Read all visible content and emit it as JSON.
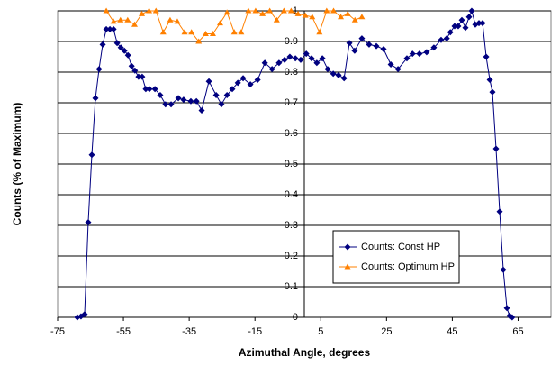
{
  "chart_data": {
    "type": "scatter",
    "x_label": "Azimuthal Angle, degrees",
    "y_label": "Counts (% of Maximum)",
    "xlim": [
      -75,
      75
    ],
    "xticks": [
      -75,
      -55,
      -35,
      -15,
      5,
      25,
      45,
      65
    ],
    "ylim": [
      0,
      1
    ],
    "yticks": [
      0,
      0.1,
      0.2,
      0.3,
      0.4,
      0.5,
      0.6,
      0.7,
      0.8,
      0.9,
      1
    ],
    "grid": true,
    "legend": "lower right",
    "series": [
      {
        "name": "Counts: Const HP",
        "color": "#000080",
        "marker": "diamond",
        "x": [
          -69.0,
          -67.9,
          -66.8,
          -65.7,
          -64.6,
          -63.5,
          -62.4,
          -61.3,
          -60.2,
          -59.1,
          -58.0,
          -56.9,
          -55.8,
          -54.7,
          -53.6,
          -52.5,
          -51.5,
          -50.4,
          -49.3,
          -48.2,
          -47.1,
          -45.4,
          -43.8,
          -42.2,
          -40.5,
          -38.3,
          -36.7,
          -34.5,
          -32.8,
          -31.2,
          -29.0,
          -26.8,
          -25.2,
          -23.5,
          -21.9,
          -20.2,
          -18.6,
          -16.4,
          -14.2,
          -12.0,
          -9.8,
          -7.7,
          -6.0,
          -4.4,
          -2.7,
          -1.1,
          0.6,
          2.2,
          3.8,
          5.5,
          7.1,
          8.8,
          10.4,
          12.1,
          13.7,
          15.3,
          17.5,
          19.7,
          21.9,
          24.1,
          26.3,
          28.5,
          31.2,
          32.9,
          35.0,
          37.2,
          39.4,
          41.6,
          43.3,
          44.4,
          45.7,
          46.8,
          47.9,
          49.0,
          50.1,
          50.9,
          52.0,
          53.1,
          54.2,
          55.3,
          56.4,
          57.2,
          58.3,
          59.4,
          60.5,
          61.6,
          62.4,
          63.2
        ],
        "values": [
          0,
          0.003,
          0.01,
          0.31,
          0.53,
          0.715,
          0.81,
          0.89,
          0.94,
          0.94,
          0.94,
          0.895,
          0.88,
          0.87,
          0.855,
          0.82,
          0.805,
          0.785,
          0.785,
          0.745,
          0.745,
          0.745,
          0.725,
          0.695,
          0.695,
          0.715,
          0.71,
          0.705,
          0.705,
          0.675,
          0.77,
          0.725,
          0.695,
          0.725,
          0.745,
          0.765,
          0.78,
          0.76,
          0.775,
          0.83,
          0.81,
          0.83,
          0.84,
          0.85,
          0.845,
          0.84,
          0.86,
          0.845,
          0.83,
          0.845,
          0.81,
          0.795,
          0.79,
          0.78,
          0.895,
          0.87,
          0.91,
          0.89,
          0.885,
          0.875,
          0.825,
          0.81,
          0.845,
          0.86,
          0.86,
          0.865,
          0.88,
          0.905,
          0.91,
          0.93,
          0.95,
          0.95,
          0.97,
          0.945,
          0.98,
          1.0,
          0.955,
          0.96,
          0.96,
          0.85,
          0.775,
          0.735,
          0.55,
          0.345,
          0.155,
          0.03,
          0.005,
          0
        ]
      },
      {
        "name": "Counts: Optimum HP",
        "color": "#ff8000",
        "marker": "triangle",
        "x": [
          -60.2,
          -58.0,
          -55.9,
          -53.7,
          -51.6,
          -49.4,
          -47.2,
          -45.1,
          -42.9,
          -40.8,
          -38.6,
          -36.4,
          -34.3,
          -32.1,
          -30.0,
          -27.8,
          -25.6,
          -23.5,
          -21.3,
          -19.2,
          -17.0,
          -14.8,
          -12.7,
          -10.5,
          -8.4,
          -6.2,
          -4.0,
          -1.9,
          0.3,
          2.4,
          4.6,
          6.8,
          8.9,
          11.1,
          13.2,
          15.4,
          17.5
        ],
        "values": [
          1.0,
          0.965,
          0.97,
          0.97,
          0.955,
          0.99,
          1.0,
          1.0,
          0.93,
          0.97,
          0.965,
          0.93,
          0.93,
          0.9,
          0.925,
          0.925,
          0.96,
          0.995,
          0.93,
          0.93,
          1.0,
          1.0,
          0.99,
          1.0,
          0.97,
          1.0,
          1.0,
          0.99,
          0.985,
          0.98,
          0.93,
          1.0,
          1.0,
          0.98,
          0.99,
          0.97,
          0.98
        ]
      }
    ]
  }
}
